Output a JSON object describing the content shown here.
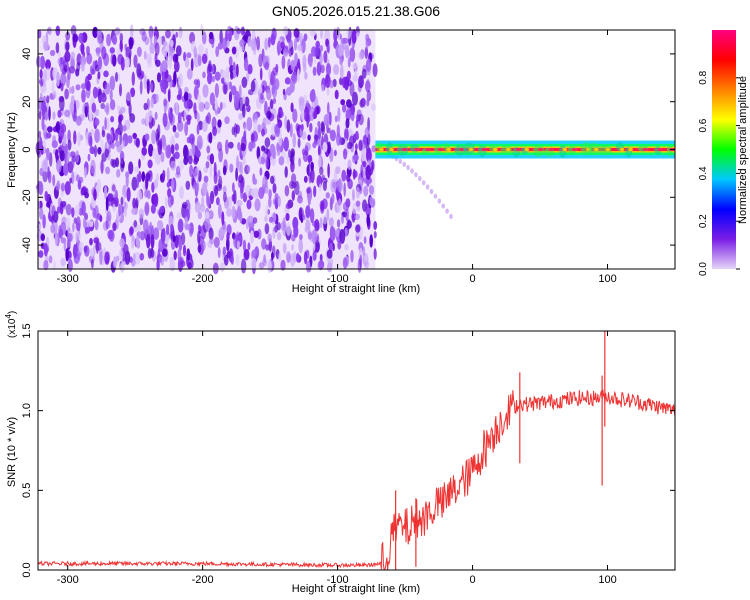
{
  "title": "GN05.2026.015.21.38.G06",
  "chart_data": [
    {
      "type": "heatmap",
      "name": "spectrogram",
      "xlabel": "Height of straight line (km)",
      "ylabel": "Frequency (Hz)",
      "xlim": [
        -322,
        150
      ],
      "ylim": [
        -50,
        50
      ],
      "xticks": [
        -300,
        -200,
        -100,
        0,
        100
      ],
      "yticks": [
        -40,
        -20,
        0,
        20,
        40
      ],
      "xtick_labels": [
        "-300",
        "-200",
        "-100",
        "0",
        "100"
      ],
      "ytick_labels": [
        "-40",
        "-20",
        "0",
        "20",
        "40"
      ],
      "noise_region_x": [
        -322,
        -72
      ],
      "signal": {
        "x_start": -72,
        "x_end": 150,
        "frequency": 0,
        "amplitude": 0.95
      },
      "faint_trail": {
        "x_start": -68,
        "x_end": -16,
        "freq_start": -1,
        "freq_end": -28
      },
      "colorbar": {
        "label": "Normalized spectral amplitude",
        "ticks": [
          0.0,
          0.2,
          0.4,
          0.6,
          0.8
        ],
        "tick_labels": [
          "0.0",
          "0.2",
          "0.4",
          "0.6",
          "0.8"
        ],
        "range": [
          0,
          1
        ],
        "colors": [
          "#e6d4f7",
          "#7a1ee6",
          "#0000ff",
          "#00c8ff",
          "#00ff00",
          "#ffff00",
          "#ff8000",
          "#ff0000",
          "#ff0080"
        ]
      }
    },
    {
      "type": "line",
      "name": "snr",
      "xlabel": "Height of straight line (km)",
      "ylabel": "SNR (10 * v/v)",
      "scale_label": "(x10",
      "scale_exp": "4",
      "scale_close": ")",
      "xlim": [
        -322,
        150
      ],
      "ylim": [
        0,
        1.5
      ],
      "xticks": [
        -300,
        -200,
        -100,
        0,
        100
      ],
      "yticks": [
        0.0,
        0.5,
        1.0,
        1.5
      ],
      "xtick_labels": [
        "-300",
        "-200",
        "-100",
        "0",
        "100"
      ],
      "ytick_labels": [
        "0.0",
        "0.5",
        "1.0",
        "1.5"
      ],
      "color": "#ee3333",
      "series": [
        {
          "name": "SNR",
          "x": [
            -322,
            -300,
            -250,
            -200,
            -150,
            -100,
            -80,
            -65,
            -60,
            -55,
            -50,
            -45,
            -40,
            -35,
            -30,
            -25,
            -20,
            -15,
            -10,
            -5,
            0,
            5,
            10,
            15,
            20,
            25,
            30,
            35,
            40,
            50,
            60,
            70,
            80,
            90,
            100,
            110,
            120,
            130,
            140,
            150
          ],
          "y": [
            0.04,
            0.04,
            0.04,
            0.04,
            0.035,
            0.03,
            0.03,
            0.04,
            0.22,
            0.28,
            0.26,
            0.28,
            0.32,
            0.33,
            0.38,
            0.42,
            0.43,
            0.5,
            0.52,
            0.58,
            0.62,
            0.7,
            0.78,
            0.86,
            0.92,
            0.98,
            1.02,
            1.05,
            1.04,
            1.05,
            1.06,
            1.07,
            1.08,
            1.08,
            1.09,
            1.07,
            1.06,
            1.04,
            1.02,
            1.0
          ]
        }
      ],
      "spikes": [
        {
          "x": 35,
          "y_max": 1.24,
          "y_min": 0.67
        },
        {
          "x": 96,
          "y_max": 1.22,
          "y_min": 0.53
        },
        {
          "x": 98,
          "y_max": 1.5,
          "y_min": 0.9
        },
        {
          "x": -57,
          "y_max": 0.5,
          "y_min": 0.0
        },
        {
          "x": -42,
          "y_max": 0.45,
          "y_min": 0.02
        }
      ]
    }
  ]
}
